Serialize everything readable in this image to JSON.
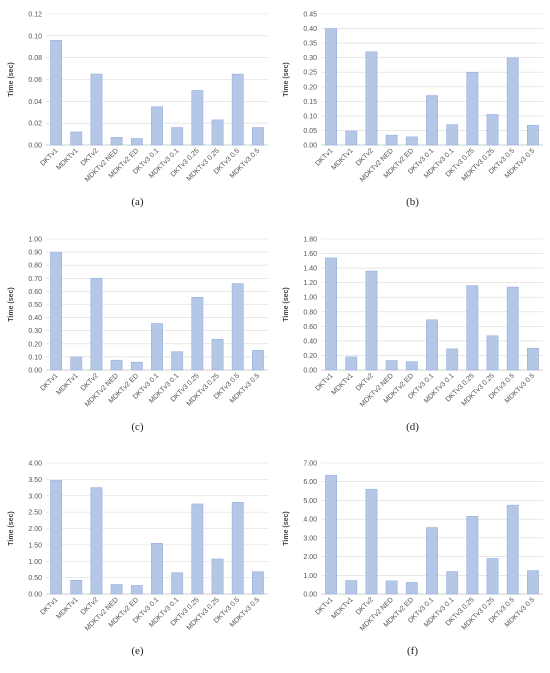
{
  "categories": [
    "DKTv1",
    "MDKTv1",
    "DKTv2",
    "MDKTv2 NED",
    "MDKTv2 ED",
    "DKTv3 0.1",
    "MDKTv3 0.1",
    "DKTv3 0.25",
    "MDKTv3 0.25",
    "DKTv3 0.5",
    "MDKTv3 0.5"
  ],
  "chart_data": [
    {
      "type": "bar",
      "label": "(a)",
      "ylabel": "Time (sec)",
      "categories": [
        "DKTv1",
        "MDKTv1",
        "DKTv2",
        "MDKTv2 NED",
        "MDKTv2 ED",
        "DKTv3 0.1",
        "MDKTv3 0.1",
        "DKTv3 0.25",
        "MDKTv3 0.25",
        "DKTv3 0.5",
        "MDKTv3 0.5"
      ],
      "values": [
        0.096,
        0.012,
        0.065,
        0.007,
        0.006,
        0.035,
        0.016,
        0.05,
        0.023,
        0.065,
        0.016
      ],
      "ylim": [
        0,
        0.12
      ],
      "yticks": [
        "0.00",
        "0.02",
        "0.04",
        "0.06",
        "0.08",
        "0.10",
        "0.12"
      ],
      "grid": true
    },
    {
      "type": "bar",
      "label": "(b)",
      "ylabel": "Time (sec)",
      "categories": [
        "DKTv1",
        "MDKTv1",
        "DKTv2",
        "MDKTv2 NED",
        "MDKTv2 ED",
        "DKTv3 0.1",
        "MDKTv3 0.1",
        "DKTv3 0.25",
        "MDKTv3 0.25",
        "DKTv3 0.5",
        "MDKTv3 0.5"
      ],
      "values": [
        0.4,
        0.048,
        0.32,
        0.034,
        0.028,
        0.17,
        0.07,
        0.25,
        0.105,
        0.3,
        0.068
      ],
      "ylim": [
        0,
        0.45
      ],
      "yticks": [
        "0.00",
        "0.05",
        "0.10",
        "0.15",
        "0.20",
        "0.25",
        "0.30",
        "0.35",
        "0.40",
        "0.45"
      ],
      "grid": true
    },
    {
      "type": "bar",
      "label": "(c)",
      "ylabel": "Time (sec)",
      "categories": [
        "DKTv1",
        "MDKTv1",
        "DKTv2",
        "MDKTv2 NED",
        "MDKTv2 ED",
        "DKTv3 0.1",
        "MDKTv3 0.1",
        "DKTv3 0.25",
        "MDKTv3 0.25",
        "DKTv3 0.5",
        "MDKTv3 0.5"
      ],
      "values": [
        0.9,
        0.1,
        0.7,
        0.075,
        0.06,
        0.355,
        0.14,
        0.555,
        0.235,
        0.66,
        0.15
      ],
      "ylim": [
        0,
        1.0
      ],
      "yticks": [
        "0.00",
        "0.10",
        "0.20",
        "0.30",
        "0.40",
        "0.50",
        "0.60",
        "0.70",
        "0.80",
        "0.90",
        "1.00"
      ],
      "grid": true
    },
    {
      "type": "bar",
      "label": "(d)",
      "ylabel": "Time (sec)",
      "categories": [
        "DKTv1",
        "MDKTv1",
        "DKTv2",
        "MDKTv2 NED",
        "MDKTv2 ED",
        "DKTv3 0.1",
        "MDKTv3 0.1",
        "DKTv3 0.25",
        "MDKTv3 0.25",
        "DKTv3 0.5",
        "MDKTv3 0.5"
      ],
      "values": [
        1.54,
        0.18,
        1.36,
        0.13,
        0.115,
        0.69,
        0.29,
        1.16,
        0.47,
        1.14,
        0.3
      ],
      "ylim": [
        0,
        1.8
      ],
      "yticks": [
        "0.00",
        "0.20",
        "0.40",
        "0.60",
        "0.80",
        "1.00",
        "1.20",
        "1.40",
        "1.60",
        "1.80"
      ],
      "grid": true
    },
    {
      "type": "bar",
      "label": "(e)",
      "ylabel": "Time (sec)",
      "categories": [
        "DKTv1",
        "MDKTv1",
        "DKTv2",
        "MDKTv2 NED",
        "MDKTv2 ED",
        "DKTv3 0.1",
        "MDKTv3 0.1",
        "DKTv3 0.25",
        "MDKTv3 0.25",
        "DKTv3 0.5",
        "MDKTv3 0.5"
      ],
      "values": [
        3.47,
        0.42,
        3.25,
        0.29,
        0.26,
        1.55,
        0.65,
        2.75,
        1.07,
        2.8,
        0.68
      ],
      "ylim": [
        0,
        4.0
      ],
      "yticks": [
        "0.00",
        "0.50",
        "1.00",
        "1.50",
        "2.00",
        "2.50",
        "3.00",
        "3.50",
        "4.00"
      ],
      "grid": true
    },
    {
      "type": "bar",
      "label": "(f)",
      "ylabel": "Time (sec)",
      "categories": [
        "DKTv1",
        "MDKTv1",
        "DKTv2",
        "MDKTv2 NED",
        "MDKTv2 ED",
        "DKTv3 0.1",
        "MDKTv3 0.1",
        "DKTv3 0.25",
        "MDKTv3 0.25",
        "DKTv3 0.5",
        "MDKTv3 0.5"
      ],
      "values": [
        6.35,
        0.72,
        5.6,
        0.7,
        0.62,
        3.55,
        1.2,
        4.15,
        1.9,
        4.75,
        1.25
      ],
      "ylim": [
        0,
        7.0
      ],
      "yticks": [
        "0.00",
        "1.00",
        "2.00",
        "3.00",
        "4.00",
        "5.00",
        "6.00",
        "7.00"
      ],
      "grid": true
    }
  ]
}
